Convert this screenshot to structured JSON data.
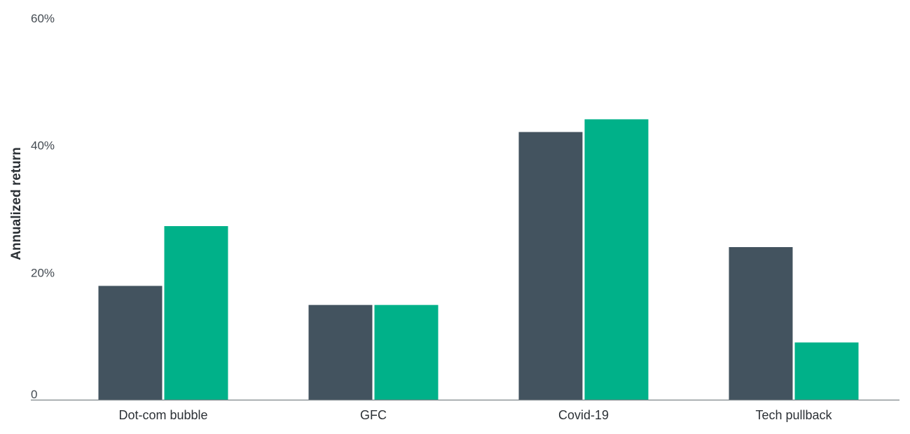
{
  "chart_data": {
    "type": "bar",
    "title": "",
    "xlabel": "",
    "ylabel": "Annualized return",
    "categories": [
      "Dot-com bubble",
      "GFC",
      "Covid-19",
      "Tech pullback"
    ],
    "series": [
      {
        "color": "#43535f",
        "values": [
          17.9,
          14.9,
          42.1,
          24.0
        ]
      },
      {
        "color": "#00b189",
        "values": [
          27.3,
          14.9,
          44.1,
          9.0
        ]
      }
    ],
    "ylim": [
      0,
      60
    ],
    "yticks": [
      0,
      20,
      40,
      60
    ],
    "ytick_labels": [
      "0",
      "20%",
      "40%",
      "60%"
    ],
    "grid": false,
    "legend": "none"
  }
}
